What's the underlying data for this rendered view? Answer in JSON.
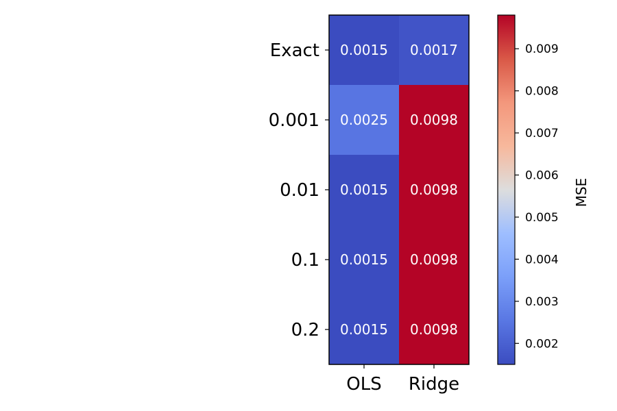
{
  "chart_data": {
    "type": "heatmap",
    "title": "",
    "xlabel": "",
    "ylabel": "",
    "x_categories": [
      "OLS",
      "Ridge"
    ],
    "y_categories": [
      "Exact",
      "0.001",
      "0.01",
      "0.1",
      "0.2"
    ],
    "values": [
      [
        0.0015,
        0.0017
      ],
      [
        0.0025,
        0.0098
      ],
      [
        0.0015,
        0.0098
      ],
      [
        0.0015,
        0.0098
      ],
      [
        0.0015,
        0.0098
      ]
    ],
    "cell_labels": [
      [
        "0.0015",
        "0.0017"
      ],
      [
        "0.0025",
        "0.0098"
      ],
      [
        "0.0015",
        "0.0098"
      ],
      [
        "0.0015",
        "0.0098"
      ],
      [
        "0.0015",
        "0.0098"
      ]
    ],
    "colormap": "coolwarm",
    "colorbar": {
      "label": "MSE",
      "range": [
        0.0015,
        0.0098
      ],
      "ticks": [
        0.002,
        0.003,
        0.004,
        0.005,
        0.006,
        0.007,
        0.008,
        0.009
      ],
      "tick_labels": [
        "0.002",
        "0.003",
        "0.004",
        "0.005",
        "0.006",
        "0.007",
        "0.008",
        "0.009"
      ]
    }
  }
}
